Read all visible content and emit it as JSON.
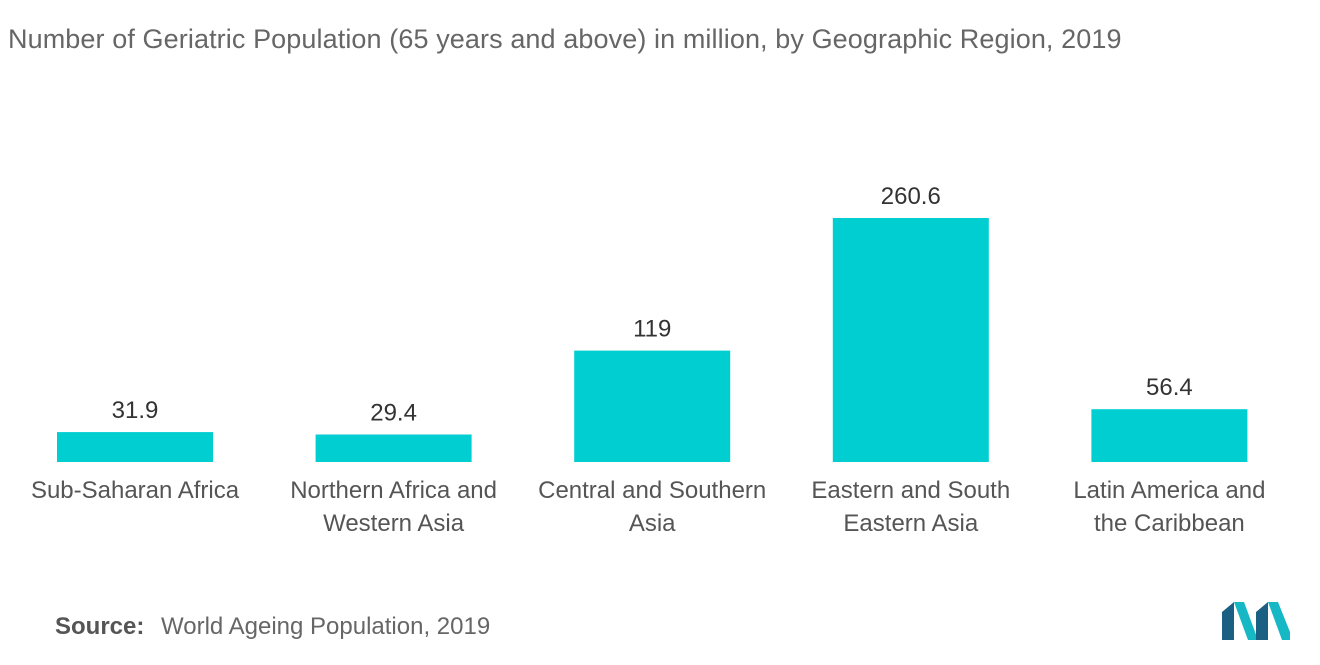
{
  "chart_data": {
    "type": "bar",
    "title": "Number of Geriatric Population (65 years and above) in million, by Geographic Region, 2019",
    "categories": [
      [
        "Sub-Saharan Africa"
      ],
      [
        "Northern Africa and",
        "Western Asia"
      ],
      [
        "Central and Southern",
        "Asia"
      ],
      [
        "Eastern and South",
        "Eastern Asia"
      ],
      [
        "Latin America and",
        "the Caribbean"
      ]
    ],
    "values": [
      31.9,
      29.4,
      119,
      260.6,
      56.4
    ],
    "value_labels": [
      "31.9",
      "29.4",
      "119",
      "260.6",
      "56.4"
    ],
    "ylim": [
      0,
      260.6
    ],
    "bar_color": "#00CED1",
    "grid": false,
    "legend": "none"
  },
  "source": {
    "label": "Source:",
    "text": "World Ageing Population, 2019"
  },
  "logo": {
    "icon": "mordor-intelligence-logo-icon",
    "colors": [
      "#1b5f82",
      "#15b8c4"
    ]
  }
}
